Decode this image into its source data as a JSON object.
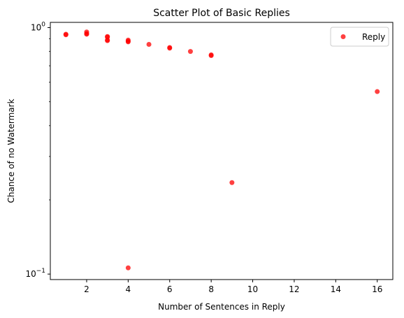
{
  "chart_data": {
    "type": "scatter",
    "title": "Scatter Plot of Basic Replies",
    "xlabel": "Number of Sentences in Reply",
    "ylabel": "Chance of no Watermark",
    "xlim": [
      0.25,
      16.75
    ],
    "ylim": [
      0.095,
      1.05
    ],
    "yscale": "log",
    "xticks": [
      2,
      4,
      6,
      8,
      10,
      12,
      14,
      16
    ],
    "yticks": [
      {
        "value": 0.1,
        "base": "10",
        "exp": "−1"
      },
      {
        "value": 1.0,
        "base": "10",
        "exp": "0"
      }
    ],
    "grid": false,
    "legend": {
      "position": "top-right"
    },
    "marker_color": "#ff0000",
    "series": [
      {
        "name": "Reply",
        "points": [
          {
            "x": 1,
            "y": 0.94
          },
          {
            "x": 1,
            "y": 0.935
          },
          {
            "x": 2,
            "y": 0.96
          },
          {
            "x": 2,
            "y": 0.945
          },
          {
            "x": 2,
            "y": 0.94
          },
          {
            "x": 3,
            "y": 0.92
          },
          {
            "x": 3,
            "y": 0.915
          },
          {
            "x": 3,
            "y": 0.89
          },
          {
            "x": 3,
            "y": 0.885
          },
          {
            "x": 4,
            "y": 0.89
          },
          {
            "x": 4,
            "y": 0.88
          },
          {
            "x": 4,
            "y": 0.875
          },
          {
            "x": 4,
            "y": 0.106
          },
          {
            "x": 5,
            "y": 0.855
          },
          {
            "x": 6,
            "y": 0.83
          },
          {
            "x": 6,
            "y": 0.825
          },
          {
            "x": 7,
            "y": 0.8
          },
          {
            "x": 8,
            "y": 0.775
          },
          {
            "x": 8,
            "y": 0.77
          },
          {
            "x": 9,
            "y": 0.235
          },
          {
            "x": 16,
            "y": 0.55
          }
        ]
      }
    ]
  }
}
